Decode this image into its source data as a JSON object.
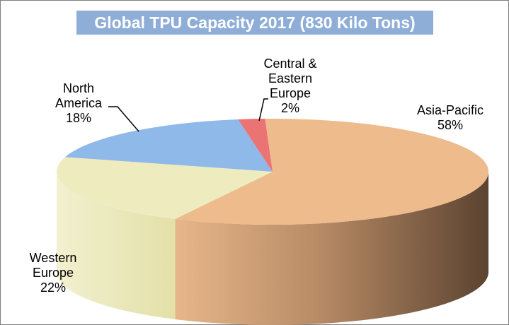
{
  "chart_data": {
    "type": "pie",
    "title": "Global TPU Capacity 2017 (830 Kilo Tons)",
    "three_d": true,
    "slices": [
      {
        "name": "Asia-Pacific",
        "label_lines": [
          "Asia-Pacific"
        ],
        "value": 58,
        "value_label": "58%",
        "color": "#edbb8c",
        "side_color_dark": "#6b5039"
      },
      {
        "name": "Western Europe",
        "label_lines": [
          "Western",
          "Europe"
        ],
        "value": 22,
        "value_label": "22%",
        "color": "#eeecbe",
        "side_color_dark": "#e2dfa4"
      },
      {
        "name": "North America",
        "label_lines": [
          "North",
          "America"
        ],
        "value": 18,
        "value_label": "18%",
        "color": "#8eb9e8",
        "side_color_dark": "#6f98c8"
      },
      {
        "name": "Central & Eastern Europe",
        "label_lines": [
          "Central &",
          "Eastern",
          "Europe"
        ],
        "value": 2,
        "value_label": "2%",
        "color": "#ea7474",
        "side_color_dark": "#b44848"
      }
    ],
    "legend": "none"
  }
}
